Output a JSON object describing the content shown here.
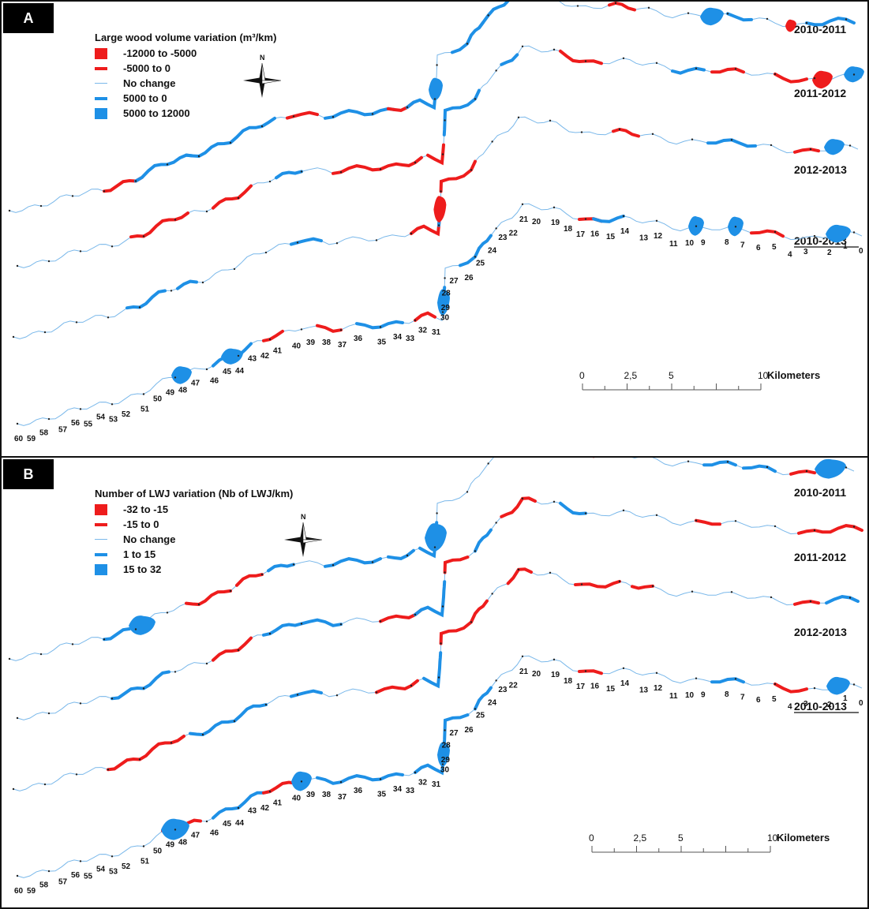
{
  "colors": {
    "red": "#ee1c1c",
    "blue": "#1e90e6",
    "thin": "#7ab8ea"
  },
  "north_label": "N",
  "panels": [
    {
      "tag": "A",
      "legend_title": "Large wood volume variation (m³/km)",
      "legend_items": [
        {
          "symbol": "box-red",
          "label": "-12000 to -5000"
        },
        {
          "symbol": "thick-red",
          "label": "-5000 to 0"
        },
        {
          "symbol": "thin",
          "label": "No change"
        },
        {
          "symbol": "thick-blue",
          "label": "5000 to 0"
        },
        {
          "symbol": "box-blue",
          "label": "5000 to 12000"
        }
      ],
      "period_labels": [
        "2010-2011",
        "2011-2012",
        "2012-2013",
        "2010-2013"
      ],
      "underlined_period": "2010-2013",
      "scale": {
        "ticks": [
          "0",
          "2,5",
          "5",
          "10"
        ],
        "unit": "Kilometers"
      }
    },
    {
      "tag": "B",
      "legend_title": "Number of LWJ variation (Nb of LWJ/km)",
      "legend_items": [
        {
          "symbol": "box-red",
          "label": "-32 to -15"
        },
        {
          "symbol": "thick-red",
          "label": "-15 to 0"
        },
        {
          "symbol": "thin",
          "label": "No change"
        },
        {
          "symbol": "thick-blue",
          "label": "1 to 15"
        },
        {
          "symbol": "box-blue",
          "label": "15 to 32"
        }
      ],
      "period_labels": [
        "2010-2011",
        "2011-2012",
        "2012-2013",
        "2010-2013"
      ],
      "underlined_period": "2010-2013",
      "scale": {
        "ticks": [
          "0",
          "2,5",
          "5",
          "10"
        ],
        "unit": "Kilometers"
      }
    }
  ],
  "km_labels": [
    "0",
    "1",
    "2",
    "3",
    "4",
    "5",
    "6",
    "7",
    "8",
    "9",
    "10",
    "11",
    "12",
    "13",
    "14",
    "15",
    "16",
    "17",
    "18",
    "19",
    "20",
    "21",
    "22",
    "23",
    "24",
    "25",
    "26",
    "27",
    "28",
    "29",
    "30",
    "31",
    "32",
    "33",
    "34",
    "35",
    "36",
    "37",
    "38",
    "39",
    "40",
    "41",
    "42",
    "43",
    "44",
    "45",
    "46",
    "47",
    "48",
    "49",
    "50",
    "51",
    "52",
    "53",
    "54",
    "55",
    "56",
    "57",
    "58",
    "59",
    "60"
  ]
}
